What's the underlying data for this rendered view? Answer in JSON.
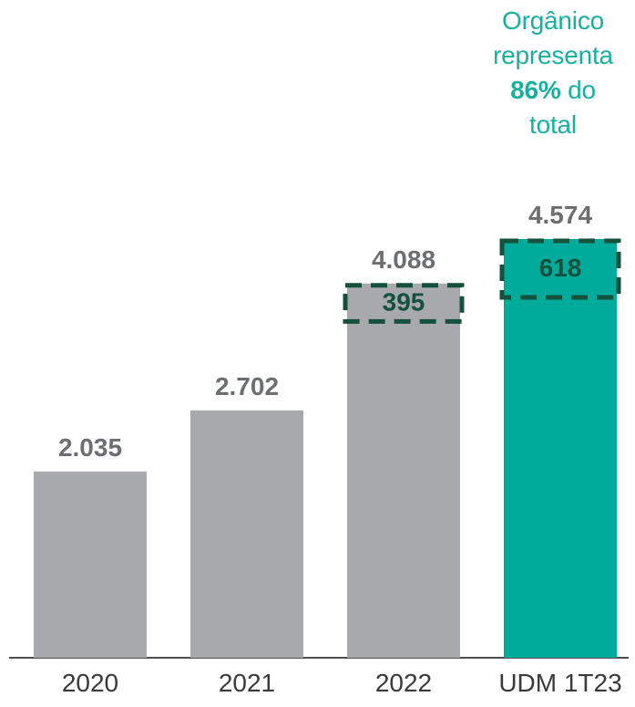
{
  "chart_data": {
    "type": "bar",
    "categories": [
      "2020",
      "2021",
      "2022",
      "UDM 1T23"
    ],
    "values": [
      2035,
      2702,
      4088,
      4574
    ],
    "value_labels": [
      "2.035",
      "2.702",
      "4.088",
      "4.574"
    ],
    "highlighted_segments": [
      {
        "category": "2022",
        "value": 395,
        "label": "395"
      },
      {
        "category": "UDM 1T23",
        "value": 618,
        "label": "618"
      }
    ],
    "ylim": [
      0,
      4574
    ],
    "grid": false,
    "title": "",
    "xlabel": "",
    "ylabel": "",
    "annotation": {
      "line1": "Orgânico",
      "line2": "representa",
      "percent": "86%",
      "line3_suffix": " do",
      "line4": "total"
    }
  },
  "colors": {
    "bar_default": "#A7A9AC",
    "bar_highlight": "#00AB9C",
    "value_label": "#6D6E71",
    "segment_outline": "#14503C",
    "segment_text": "#14503C",
    "annotation": "#19AFA0",
    "axis_text": "#3A3A3A",
    "baseline": "#4D4D4D"
  }
}
